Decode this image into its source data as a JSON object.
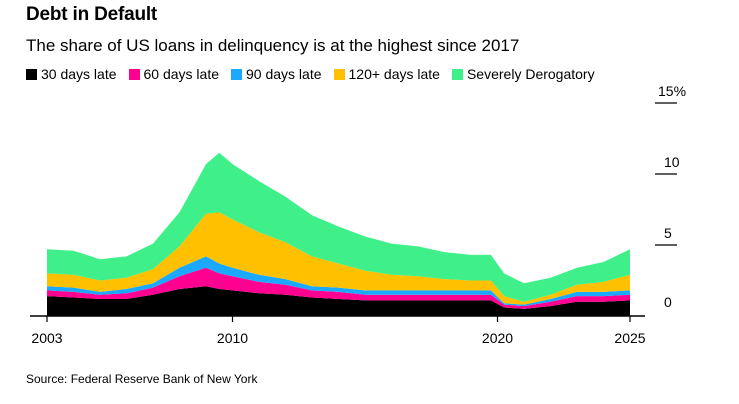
{
  "header": {
    "title": "Debt in Default",
    "subtitle": "The share of US loans in delinquency is at the highest since 2017"
  },
  "footer": {
    "source": "Source: Federal Reserve Bank of New York"
  },
  "chart_data": {
    "type": "area",
    "stacked": true,
    "title": "Debt in Default",
    "subtitle": "The share of US loans in delinquency is at the highest since 2017",
    "x": [
      2003,
      2004,
      2005,
      2006,
      2007,
      2008,
      2009,
      2009.5,
      2010,
      2011,
      2012,
      2013,
      2014,
      2015,
      2016,
      2017,
      2018,
      2019,
      2019.75,
      2020.25,
      2021,
      2022,
      2023,
      2024,
      2025
    ],
    "series": [
      {
        "name": "30 days late",
        "color": "#000000",
        "values": [
          1.4,
          1.3,
          1.2,
          1.2,
          1.5,
          1.9,
          2.1,
          1.9,
          1.8,
          1.6,
          1.5,
          1.3,
          1.2,
          1.1,
          1.1,
          1.1,
          1.1,
          1.1,
          1.1,
          0.6,
          0.5,
          0.7,
          1.0,
          1.0,
          1.1
        ]
      },
      {
        "name": "60 days late",
        "color": "#ff0090",
        "values": [
          0.4,
          0.4,
          0.3,
          0.4,
          0.5,
          0.9,
          1.3,
          1.1,
          1.0,
          0.8,
          0.7,
          0.5,
          0.5,
          0.4,
          0.4,
          0.4,
          0.4,
          0.4,
          0.4,
          0.2,
          0.2,
          0.3,
          0.4,
          0.4,
          0.4
        ]
      },
      {
        "name": "90 days late",
        "color": "#1aa9ff",
        "values": [
          0.3,
          0.3,
          0.2,
          0.3,
          0.3,
          0.6,
          0.8,
          0.7,
          0.6,
          0.5,
          0.4,
          0.3,
          0.3,
          0.3,
          0.3,
          0.3,
          0.3,
          0.3,
          0.3,
          0.1,
          0.1,
          0.2,
          0.3,
          0.3,
          0.3
        ]
      },
      {
        "name": "120+ days late",
        "color": "#ffc000",
        "values": [
          0.9,
          0.9,
          0.8,
          0.8,
          1.0,
          1.5,
          3.0,
          3.6,
          3.4,
          3.0,
          2.6,
          2.1,
          1.7,
          1.4,
          1.1,
          1.0,
          0.8,
          0.7,
          0.7,
          0.5,
          0.2,
          0.3,
          0.5,
          0.7,
          1.1
        ]
      },
      {
        "name": "Severely Derogatory",
        "color": "#3ff08a",
        "values": [
          1.7,
          1.7,
          1.5,
          1.5,
          1.8,
          2.4,
          3.5,
          4.2,
          3.9,
          3.6,
          3.2,
          2.9,
          2.6,
          2.4,
          2.2,
          2.1,
          1.9,
          1.8,
          1.8,
          1.6,
          1.3,
          1.2,
          1.2,
          1.4,
          1.8
        ]
      }
    ],
    "y_ticks": [
      {
        "value": 0,
        "label": "0"
      },
      {
        "value": 5,
        "label": "5"
      },
      {
        "value": 10,
        "label": "10"
      },
      {
        "value": 15,
        "label": "15%"
      }
    ],
    "x_ticks": [
      {
        "value": 2003,
        "label": "2003"
      },
      {
        "value": 2010,
        "label": "2010"
      },
      {
        "value": 2020,
        "label": "2020"
      },
      {
        "value": 2025,
        "label": "2025"
      }
    ],
    "xlim": [
      2003,
      2025
    ],
    "ylim": [
      0,
      15
    ],
    "legend_position": "top-left"
  }
}
